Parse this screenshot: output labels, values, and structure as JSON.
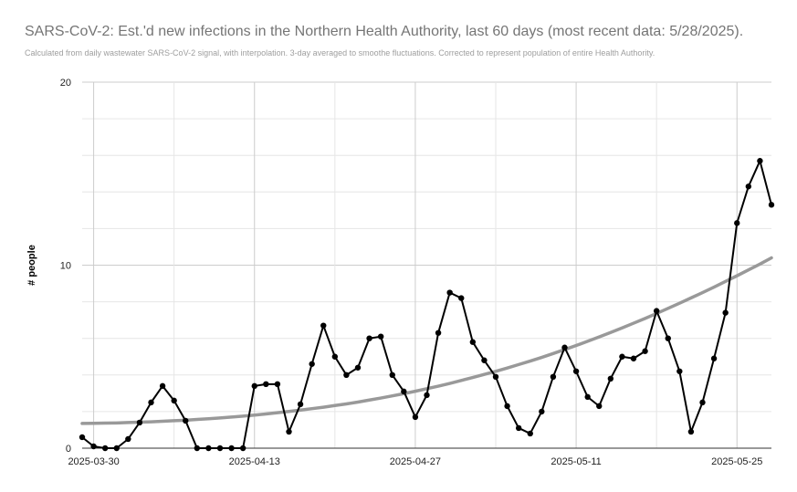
{
  "chart_data": {
    "type": "line",
    "title": "SARS-CoV-2: Est.'d new infections in the Northern Health Authority, last 60 days (most recent data: 5/28/2025).",
    "subtitle": "Calculated from daily wastewater SARS-CoV-2 signal, with interpolation. 3-day averaged to smoothe fluctuations. Corrected to represent population of entire Health Authority.",
    "xlabel": "",
    "ylabel": "# people",
    "x_start": "2025-03-29",
    "x_ticks": [
      "2025-03-30",
      "2025-04-13",
      "2025-04-27",
      "2025-05-11",
      "2025-05-25"
    ],
    "y_ticks": [
      "0",
      "10",
      "20"
    ],
    "ylim": [
      0,
      20
    ],
    "grid": true,
    "series": [
      {
        "color": "#000000",
        "marker": "circle",
        "values": [
          0.6,
          0.1,
          0.0,
          0.0,
          0.5,
          1.4,
          2.5,
          3.4,
          2.6,
          1.5,
          0.0,
          0.0,
          0.0,
          0.0,
          0.0,
          3.4,
          3.5,
          3.5,
          0.9,
          2.4,
          4.6,
          6.7,
          5.0,
          4.0,
          4.4,
          6.0,
          6.1,
          4.0,
          3.1,
          1.7,
          2.9,
          6.3,
          8.5,
          8.2,
          5.8,
          4.8,
          3.9,
          2.3,
          1.1,
          0.8,
          2.0,
          3.9,
          5.5,
          4.2,
          2.8,
          2.3,
          3.8,
          5.0,
          4.9,
          5.3,
          7.5,
          6.0,
          4.2,
          0.9,
          2.5,
          4.9,
          7.4,
          12.3,
          14.3,
          15.7,
          13.3
        ]
      },
      {
        "color": "#999999",
        "marker": "none",
        "values": [
          1.35,
          1.36,
          1.37,
          1.38,
          1.4,
          1.42,
          1.44,
          1.47,
          1.5,
          1.53,
          1.57,
          1.61,
          1.65,
          1.7,
          1.75,
          1.81,
          1.87,
          1.94,
          2.01,
          2.08,
          2.16,
          2.24,
          2.33,
          2.42,
          2.52,
          2.63,
          2.74,
          2.86,
          2.98,
          3.11,
          3.25,
          3.39,
          3.54,
          3.7,
          3.86,
          4.03,
          4.2,
          4.38,
          4.57,
          4.76,
          4.96,
          5.17,
          5.39,
          5.61,
          5.84,
          6.08,
          6.32,
          6.57,
          6.83,
          7.09,
          7.36,
          7.64,
          7.92,
          8.21,
          8.5,
          8.8,
          9.11,
          9.42,
          9.74,
          10.06,
          10.4
        ]
      }
    ]
  }
}
